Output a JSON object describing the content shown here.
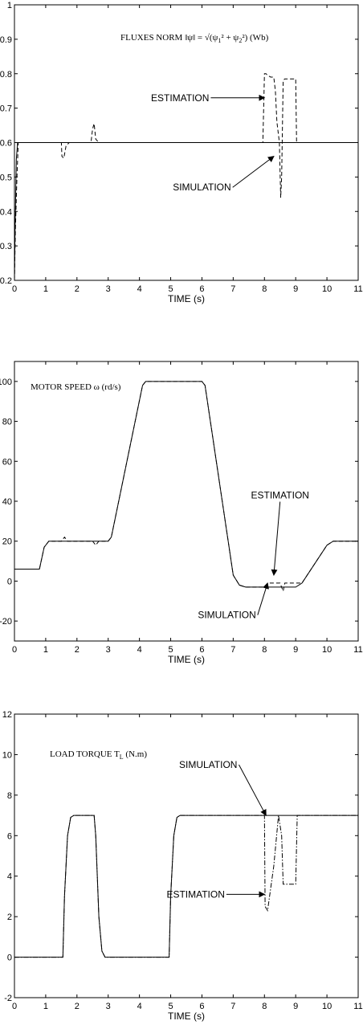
{
  "chart_data": [
    {
      "type": "line",
      "title": "FLUXES NORM ‖ψ‖ = √(ψ1² + ψ2²) (Wb)",
      "xlabel": "TIME (s)",
      "xlim": [
        0,
        11
      ],
      "ylim": [
        0.2,
        1
      ],
      "xticks": [
        "0",
        "1",
        "2",
        "3",
        "4",
        "5",
        "6",
        "7",
        "8",
        "9",
        "10",
        "11"
      ],
      "yticks": [
        "0.2",
        "0.3",
        "0.4",
        "0.5",
        "0.6",
        "0.7",
        "0.8",
        "0.9",
        "1"
      ],
      "annotations": [
        {
          "text": "ESTIMATION",
          "text_at": [
            5.3,
            0.73
          ],
          "arrow_to": [
            8.0,
            0.73
          ]
        },
        {
          "text": "SIMULATION",
          "text_at": [
            6.0,
            0.47
          ],
          "arrow_to": [
            8.3,
            0.56
          ]
        }
      ],
      "series": [
        {
          "name": "SIMULATION",
          "style": "solid",
          "x": [
            0,
            0.02,
            0.06,
            0.1,
            11
          ],
          "y": [
            0.2,
            0.35,
            0.55,
            0.6,
            0.6
          ]
        },
        {
          "name": "ESTIMATION",
          "style": "dashed",
          "x": [
            0,
            0.03,
            0.08,
            0.12,
            1.5,
            1.52,
            1.58,
            1.65,
            1.75,
            2.45,
            2.5,
            2.55,
            2.6,
            2.7,
            2.8,
            7.95,
            8.0,
            8.05,
            8.1,
            8.2,
            8.3,
            8.35,
            8.4,
            8.48,
            8.52,
            8.55,
            8.6,
            8.65,
            8.9,
            9.0,
            9.03,
            9.1,
            11
          ],
          "y": [
            0.2,
            0.35,
            0.5,
            0.6,
            0.6,
            0.56,
            0.555,
            0.59,
            0.6,
            0.6,
            0.64,
            0.655,
            0.61,
            0.6,
            0.6,
            0.6,
            0.8,
            0.8,
            0.795,
            0.79,
            0.79,
            0.75,
            0.66,
            0.6,
            0.44,
            0.5,
            0.78,
            0.785,
            0.785,
            0.785,
            0.6,
            0.6,
            0.6
          ]
        }
      ]
    },
    {
      "type": "line",
      "title": "MOTOR SPEED ω (rd/s)",
      "xlabel": "TIME (s)",
      "xlim": [
        0,
        11
      ],
      "ylim": [
        -30,
        110
      ],
      "xticks": [
        "0",
        "1",
        "2",
        "3",
        "4",
        "5",
        "6",
        "7",
        "8",
        "9",
        "10",
        "11"
      ],
      "yticks": [
        "-20",
        "0",
        "20",
        "40",
        "60",
        "80",
        "100"
      ],
      "annotations": [
        {
          "text": "ESTIMATION",
          "text_at": [
            8.5,
            43
          ],
          "arrow_to": [
            8.3,
            3
          ]
        },
        {
          "text": "SIMULATION",
          "text_at": [
            6.8,
            -17
          ],
          "arrow_to": [
            8.1,
            -1
          ]
        }
      ],
      "series": [
        {
          "name": "SIMULATION",
          "style": "solid",
          "x": [
            0,
            0.8,
            0.95,
            1.1,
            3.0,
            3.1,
            4.1,
            4.2,
            6.0,
            6.1,
            7.0,
            7.2,
            7.4,
            9.0,
            9.2,
            10.0,
            10.2,
            11
          ],
          "y": [
            6,
            6,
            17,
            20,
            20,
            22,
            98,
            100,
            100,
            98,
            3,
            -2,
            -3,
            -3,
            -1,
            18,
            20,
            20
          ]
        },
        {
          "name": "ESTIMATION",
          "style": "dashed",
          "x": [
            0,
            0.8,
            0.95,
            1.1,
            1.5,
            1.6,
            1.7,
            2.5,
            2.6,
            2.7,
            3.0,
            3.1,
            4.1,
            4.2,
            6.0,
            6.1,
            7.0,
            7.2,
            7.4,
            8.0,
            8.1,
            8.3,
            8.5,
            8.6,
            8.65,
            8.7,
            9.0,
            9.2,
            10.0,
            10.2,
            11
          ],
          "y": [
            6,
            6,
            17,
            20,
            20,
            22,
            20,
            20,
            18,
            20,
            20,
            22,
            98,
            100,
            100,
            98,
            3,
            -2,
            -3,
            -3,
            -1,
            -1,
            -1,
            -5,
            -1,
            -1,
            -1,
            -1,
            18,
            20,
            20
          ]
        }
      ]
    },
    {
      "type": "line",
      "title": "LOAD TORQUE T_L (N.m)",
      "xlabel": "TIME (s)",
      "xlim": [
        0,
        11
      ],
      "ylim": [
        -2,
        12
      ],
      "xticks": [
        "0",
        "1",
        "2",
        "3",
        "4",
        "5",
        "6",
        "7",
        "8",
        "9",
        "10",
        "11"
      ],
      "yticks": [
        "-2",
        "0",
        "2",
        "4",
        "6",
        "8",
        "10",
        "12"
      ],
      "annotations": [
        {
          "text": "SIMULATION",
          "text_at": [
            6.2,
            9.5
          ],
          "arrow_to": [
            8.05,
            7.0
          ]
        },
        {
          "text": "ESTIMATION",
          "text_at": [
            5.8,
            3.1
          ],
          "arrow_to": [
            8.0,
            3.1
          ]
        }
      ],
      "series": [
        {
          "name": "SIMULATION",
          "style": "solid",
          "x": [
            0,
            1.55,
            1.6,
            1.7,
            1.8,
            1.9,
            2.55,
            2.6,
            2.7,
            2.8,
            2.9,
            4.95,
            5.0,
            5.1,
            5.2,
            5.3,
            11
          ],
          "y": [
            0,
            0,
            3,
            6,
            6.9,
            7,
            7,
            6,
            2,
            0.3,
            0,
            0,
            3,
            6,
            6.9,
            7,
            7
          ]
        },
        {
          "name": "ESTIMATION",
          "style": "dashdot",
          "x": [
            0,
            1.55,
            1.6,
            1.7,
            1.8,
            1.9,
            2.55,
            2.6,
            2.7,
            2.8,
            2.9,
            4.95,
            5.0,
            5.1,
            5.2,
            5.3,
            8.0,
            8.02,
            8.1,
            8.3,
            8.45,
            8.55,
            8.6,
            8.8,
            9.0,
            9.05,
            9.1,
            11
          ],
          "y": [
            0,
            0,
            3,
            6,
            6.9,
            7,
            7,
            6,
            2,
            0.3,
            0,
            0,
            3,
            6,
            6.9,
            7,
            7,
            2.5,
            2.3,
            4.5,
            7,
            6,
            3.6,
            3.6,
            3.6,
            7,
            7,
            7
          ]
        }
      ]
    }
  ]
}
